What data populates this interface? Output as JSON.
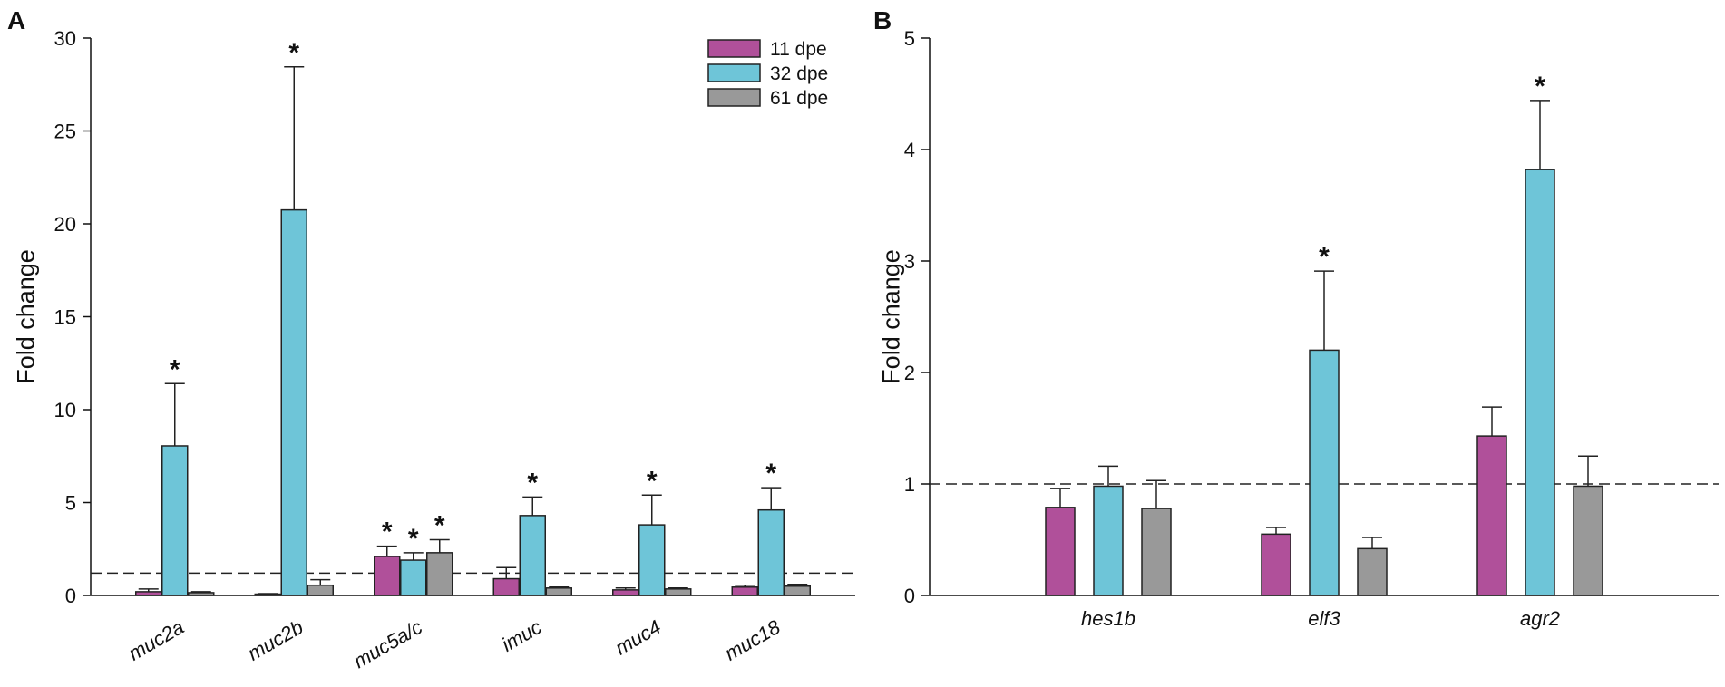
{
  "colors": {
    "11 dpe": "#B0509A",
    "32 dpe": "#6EC5D8",
    "61 dpe": "#999999",
    "axis": "#111111",
    "bar_stroke": "#222222"
  },
  "legend": [
    "11 dpe",
    "32 dpe",
    "61 dpe"
  ],
  "chart_data": [
    {
      "type": "bar",
      "panel": "A",
      "title": "",
      "xlabel": "",
      "ylabel": "Fold change",
      "ylim": [
        0,
        30
      ],
      "yticks": [
        "0",
        "5",
        "10",
        "15",
        "20",
        "25",
        "30"
      ],
      "categories": [
        "muc2a",
        "muc2b",
        "muc5a/c",
        "imuc",
        "muc4",
        "muc18"
      ],
      "reference_line": 1.2,
      "series": [
        {
          "name": "11 dpe",
          "values": [
            0.2,
            0.05,
            2.1,
            0.9,
            0.3,
            0.45
          ],
          "errors": [
            0.15,
            0.05,
            0.55,
            0.6,
            0.1,
            0.1
          ],
          "significant": [
            false,
            false,
            true,
            false,
            false,
            false
          ]
        },
        {
          "name": "32 dpe",
          "values": [
            8.05,
            20.75,
            1.9,
            4.3,
            3.8,
            4.6
          ],
          "errors": [
            3.35,
            7.7,
            0.4,
            1.0,
            1.6,
            1.2
          ],
          "significant": [
            true,
            true,
            true,
            true,
            true,
            true
          ]
        },
        {
          "name": "61 dpe",
          "values": [
            0.15,
            0.55,
            2.3,
            0.4,
            0.35,
            0.5
          ],
          "errors": [
            0.05,
            0.3,
            0.7,
            0.05,
            0.05,
            0.1
          ],
          "significant": [
            false,
            false,
            true,
            false,
            false,
            false
          ]
        }
      ]
    },
    {
      "type": "bar",
      "panel": "B",
      "title": "",
      "xlabel": "",
      "ylabel": "Fold change",
      "ylim": [
        0,
        5
      ],
      "yticks": [
        "0",
        "1",
        "2",
        "3",
        "4",
        "5"
      ],
      "categories": [
        "hes1b",
        "elf3",
        "agr2"
      ],
      "reference_line": 1.0,
      "series": [
        {
          "name": "11 dpe",
          "values": [
            0.79,
            0.55,
            1.43
          ],
          "errors": [
            0.17,
            0.06,
            0.26
          ],
          "significant": [
            false,
            false,
            false
          ]
        },
        {
          "name": "32 dpe",
          "values": [
            0.98,
            2.2,
            3.82
          ],
          "errors": [
            0.18,
            0.71,
            0.62
          ],
          "significant": [
            false,
            true,
            true
          ]
        },
        {
          "name": "61 dpe",
          "values": [
            0.78,
            0.42,
            0.98
          ],
          "errors": [
            0.25,
            0.1,
            0.27
          ],
          "significant": [
            false,
            false,
            false
          ]
        }
      ]
    }
  ],
  "significance_symbol": "*"
}
